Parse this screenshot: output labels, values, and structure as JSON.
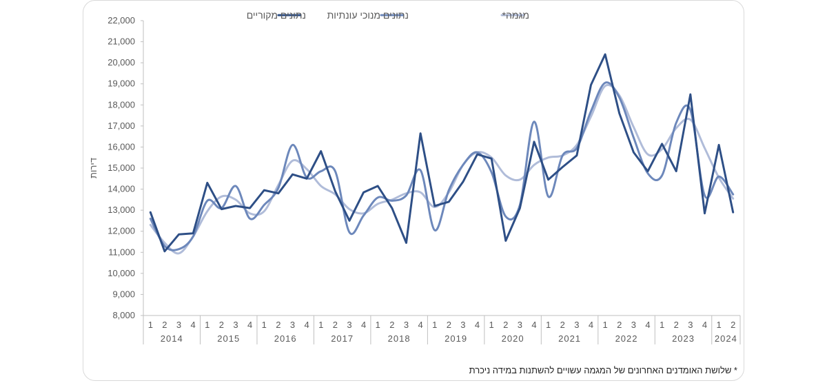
{
  "chart_data": {
    "type": "line",
    "ylabel": "דירות",
    "ylim": [
      8000,
      22000
    ],
    "ytick_step": 1000,
    "grid": false,
    "legend_position": "top",
    "footnote": "* שלושת האומדנים האחרונים של המגמה עשויים להשתנות במידה ניכרת",
    "x_quarters": [
      "1",
      "2",
      "3",
      "4",
      "1",
      "2",
      "3",
      "4",
      "1",
      "2",
      "3",
      "4",
      "1",
      "2",
      "3",
      "4",
      "1",
      "2",
      "3",
      "4",
      "1",
      "2",
      "3",
      "4",
      "1",
      "2",
      "3",
      "4",
      "1",
      "2",
      "3",
      "4",
      "1",
      "2",
      "3",
      "4",
      "1",
      "2",
      "3",
      "4",
      "1",
      "2"
    ],
    "x_years": [
      {
        "label": "2014",
        "quarters": 4
      },
      {
        "label": "2015",
        "quarters": 4
      },
      {
        "label": "2016",
        "quarters": 4
      },
      {
        "label": "2017",
        "quarters": 4
      },
      {
        "label": "2018",
        "quarters": 4
      },
      {
        "label": "2019",
        "quarters": 4
      },
      {
        "label": "2020",
        "quarters": 4
      },
      {
        "label": "2021",
        "quarters": 4
      },
      {
        "label": "2022",
        "quarters": 4
      },
      {
        "label": "2023",
        "quarters": 4
      },
      {
        "label": "2024",
        "quarters": 2
      }
    ],
    "series": [
      {
        "name": "נתונים מקוריים",
        "color": "#2e4f86",
        "smooth": false,
        "values": [
          12900,
          11050,
          11850,
          11900,
          14300,
          13050,
          13200,
          13100,
          13950,
          13800,
          14700,
          14500,
          15800,
          13900,
          12500,
          13850,
          14150,
          13100,
          11450,
          16650,
          13200,
          13400,
          14350,
          15650,
          15450,
          11550,
          13100,
          16250,
          14450,
          15050,
          15600,
          18950,
          20400,
          17600,
          15750,
          14850,
          16150,
          14850,
          18500,
          12850,
          16100,
          12900
        ]
      },
      {
        "name": "נתונים מנוכי עונתיות",
        "color": "#6d88bb",
        "smooth": true,
        "values": [
          12600,
          11300,
          11150,
          11750,
          13450,
          13100,
          14150,
          12600,
          13250,
          14050,
          16100,
          14550,
          14850,
          14850,
          11950,
          12750,
          13600,
          13450,
          13700,
          14900,
          12050,
          13950,
          15150,
          15750,
          14800,
          12700,
          13250,
          17200,
          13650,
          15600,
          15950,
          17700,
          19050,
          18350,
          16450,
          14750,
          14650,
          17150,
          17750,
          13700,
          14600,
          13750
        ]
      },
      {
        "name": "מגמה*",
        "color": "#b0bcd9",
        "smooth": true,
        "values": [
          12300,
          11450,
          10950,
          11750,
          12950,
          13650,
          13500,
          12850,
          12950,
          14200,
          15350,
          14950,
          14150,
          13750,
          13050,
          12850,
          13300,
          13500,
          13800,
          13850,
          13150,
          13850,
          15150,
          15750,
          15500,
          14650,
          14450,
          15150,
          15500,
          15600,
          16100,
          17450,
          18900,
          18450,
          16950,
          15650,
          15900,
          16900,
          17300,
          15950,
          14550,
          13550
        ]
      }
    ]
  }
}
